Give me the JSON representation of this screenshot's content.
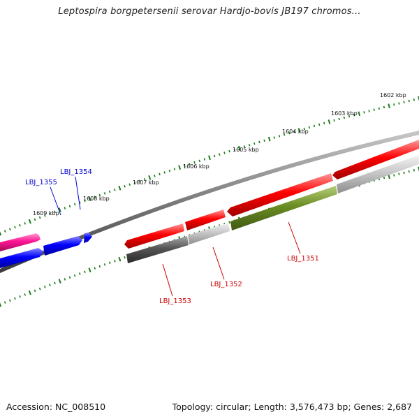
{
  "title": "Leptospira borgpetersenii serovar Hardjo-bovis JB197 chromos...",
  "footer": {
    "accession": "Accession: NC_008510",
    "summary": "Topology: circular; Length: 3,576,473 bp; Genes: 2,687"
  },
  "ruler": {
    "labels": [
      "1602 kbp",
      "1603 kbp",
      "1604 kbp",
      "1605 kbp",
      "1606 kbp",
      "1607 kbp",
      "1608 kbp",
      "1609 kbp"
    ]
  },
  "gene_labels": {
    "lbj_1355": "LBJ_1355",
    "lbj_1354": "LBJ_1354",
    "lbj_1353": "LBJ_1353",
    "lbj_1352": "LBJ_1352",
    "lbj_1351": "LBJ_1351"
  },
  "colors": {
    "red": "#ff0000",
    "blue": "#0000ff",
    "pink": "#ff1493",
    "olive": "#6b8e23",
    "dark_gray": "#555555",
    "light_gray": "#c8c8c8",
    "tick_green": "#1a7a1a",
    "label_red": "#cc0000",
    "label_blue": "#0000cc",
    "backbone": "#7a7a7a"
  }
}
